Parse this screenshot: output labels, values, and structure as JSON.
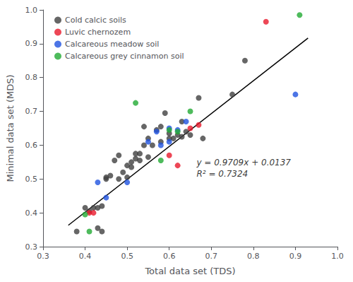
{
  "chart_data": {
    "type": "scatter",
    "xlabel": "Total data set (TDS)",
    "ylabel": "Minimal data set (MDS)",
    "xlim": [
      0.3,
      1.0
    ],
    "ylim": [
      0.3,
      1.0
    ],
    "xticks": [
      0.3,
      0.4,
      0.5,
      0.6,
      0.7,
      0.8,
      0.9,
      {
        "value": 1.0,
        "label": "1.0"
      }
    ],
    "yticks": [
      0.3,
      0.4,
      0.5,
      0.6,
      0.7,
      0.8,
      0.9,
      {
        "value": 1.0,
        "label": "1.0"
      }
    ],
    "grid": false,
    "legend": "upper left",
    "series": [
      {
        "name": "Cold calcic soils",
        "color": "#404040",
        "marker": "circle",
        "x": [
          0.38,
          0.4,
          0.41,
          0.42,
          0.43,
          0.43,
          0.44,
          0.44,
          0.45,
          0.45,
          0.46,
          0.47,
          0.48,
          0.48,
          0.49,
          0.5,
          0.5,
          0.51,
          0.51,
          0.52,
          0.52,
          0.53,
          0.53,
          0.54,
          0.54,
          0.55,
          0.55,
          0.56,
          0.57,
          0.58,
          0.58,
          0.59,
          0.6,
          0.6,
          0.61,
          0.62,
          0.63,
          0.63,
          0.64,
          0.65,
          0.67,
          0.68,
          0.75,
          0.78
        ],
        "y": [
          0.345,
          0.415,
          0.405,
          0.415,
          0.355,
          0.415,
          0.345,
          0.42,
          0.5,
          0.505,
          0.51,
          0.555,
          0.5,
          0.57,
          0.52,
          0.505,
          0.54,
          0.535,
          0.55,
          0.56,
          0.575,
          0.555,
          0.575,
          0.6,
          0.655,
          0.565,
          0.62,
          0.6,
          0.645,
          0.61,
          0.655,
          0.695,
          0.62,
          0.635,
          0.62,
          0.63,
          0.625,
          0.67,
          0.64,
          0.63,
          0.74,
          0.62,
          0.75,
          0.85
        ]
      },
      {
        "name": "Luvic chernozem",
        "color": "#e8192c",
        "marker": "circle",
        "x": [
          0.41,
          0.42,
          0.6,
          0.62,
          0.65,
          0.67,
          0.83
        ],
        "y": [
          0.4,
          0.4,
          0.57,
          0.54,
          0.65,
          0.66,
          0.965
        ]
      },
      {
        "name": "Calcareous meadow soil",
        "color": "#1f52e0",
        "marker": "circle",
        "x": [
          0.43,
          0.45,
          0.5,
          0.55,
          0.57,
          0.58,
          0.6,
          0.6,
          0.62,
          0.64,
          0.9
        ],
        "y": [
          0.49,
          0.445,
          0.49,
          0.61,
          0.64,
          0.6,
          0.61,
          0.65,
          0.645,
          0.67,
          0.75
        ]
      },
      {
        "name": "Calcareous grey cinnamon soil",
        "color": "#22aa33",
        "marker": "circle",
        "x": [
          0.4,
          0.41,
          0.52,
          0.58,
          0.6,
          0.62,
          0.65,
          0.91
        ],
        "y": [
          0.395,
          0.345,
          0.725,
          0.555,
          0.645,
          0.64,
          0.7,
          0.985
        ]
      },
      {
        "type": "line",
        "color": "#000000",
        "x": [
          0.36,
          0.93
        ],
        "y": [
          0.363224,
          0.916637
        ]
      }
    ],
    "annotations": [
      {
        "text": "y = 0.9709x + 0.0137\nR² = 0.7324",
        "x": 0.665,
        "y": 0.565
      }
    ]
  }
}
